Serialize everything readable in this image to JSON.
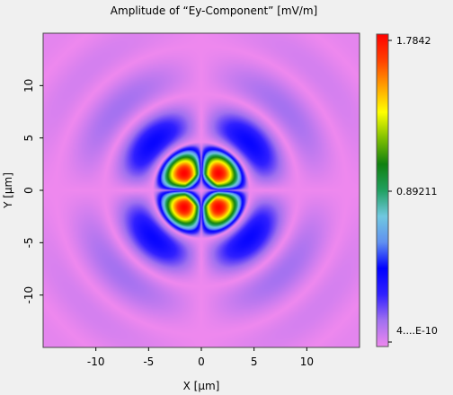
{
  "chart_data": {
    "type": "heatmap",
    "title": "Amplitude of “Ey-Component”  [mV/m]",
    "xlabel": "X [µm]",
    "ylabel": "Y [µm]",
    "xlim": [
      -15,
      15
    ],
    "ylim": [
      -15,
      15
    ],
    "xticks": [
      "-10",
      "-5",
      "0",
      "5",
      "10"
    ],
    "yticks": [
      "10",
      "5",
      "0",
      "-5",
      "-10"
    ],
    "xtick_values": [
      -10,
      -5,
      0,
      5,
      10
    ],
    "ytick_values": [
      10,
      5,
      0,
      -5,
      -10
    ],
    "colorbar": {
      "max_label": "1.7842",
      "mid_label": "0.89211",
      "min_label": "4....E-10",
      "max": 1.7842,
      "mid": 0.89211,
      "min": 4e-10
    },
    "colormap": [
      "#ee88ee",
      "#a070f0",
      "#3020ff",
      "#0000ff",
      "#6090f0",
      "#70c8e0",
      "#20a060",
      "#108010",
      "#80c000",
      "#ffff00",
      "#ffa000",
      "#ff4000",
      "#ff0000"
    ],
    "peaks": [
      {
        "x": -2.3,
        "y": 2.3,
        "value": 1.7842
      },
      {
        "x": 2.3,
        "y": 2.3,
        "value": 1.7842
      },
      {
        "x": -2.3,
        "y": -2.3,
        "value": 1.7842
      },
      {
        "x": 2.3,
        "y": -2.3,
        "value": 1.7842
      }
    ]
  }
}
